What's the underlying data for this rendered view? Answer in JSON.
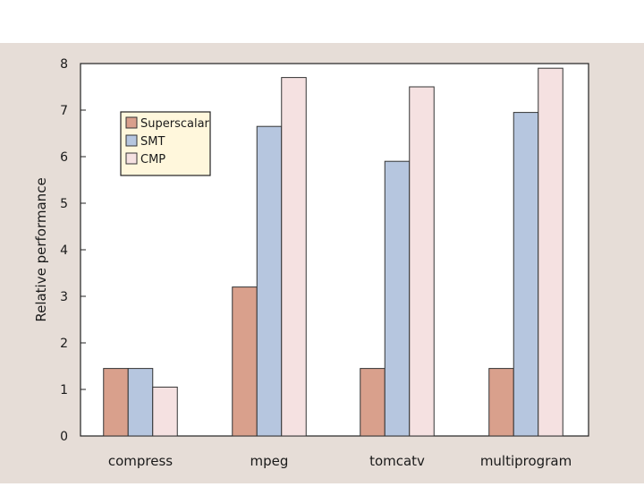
{
  "colors": {
    "page_background": "#ffffff",
    "backdrop": "#e6ddd7",
    "plot_background": "#ffffff",
    "axis": "#222222",
    "legend_background": "#fff7dc"
  },
  "chart_data": {
    "type": "bar",
    "title": "",
    "xlabel": "",
    "ylabel": "Relative performance",
    "ylim": [
      0,
      8
    ],
    "yticks": [
      0,
      1,
      2,
      3,
      4,
      5,
      6,
      7,
      8
    ],
    "grid": false,
    "legend_position": "top-left",
    "categories": [
      "compress",
      "mpeg",
      "tomcatv",
      "multiprogram"
    ],
    "series": [
      {
        "name": "Superscalar",
        "color": "#d9a08c",
        "values": [
          1.45,
          3.2,
          1.45,
          1.45
        ]
      },
      {
        "name": "SMT",
        "color": "#b6c6df",
        "values": [
          1.45,
          6.65,
          5.9,
          6.95
        ]
      },
      {
        "name": "CMP",
        "color": "#f5e1e1",
        "values": [
          1.05,
          7.7,
          7.5,
          7.9
        ]
      }
    ]
  }
}
